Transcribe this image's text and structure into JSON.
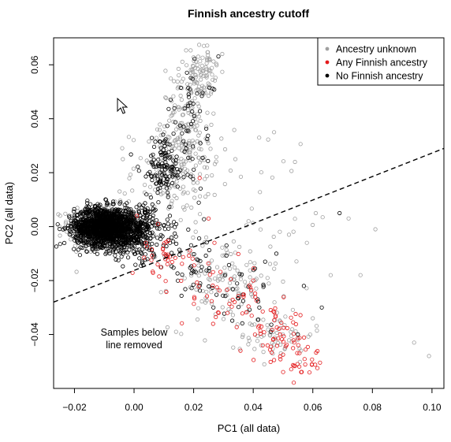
{
  "chart_data": {
    "type": "scatter",
    "title": "Finnish ancestry cutoff",
    "xlabel": "PC1 (all data)",
    "ylabel": "PC2 (all data)",
    "xlim": [
      -0.027,
      0.104
    ],
    "ylim": [
      -0.06,
      0.07
    ],
    "x_ticks": [
      -0.02,
      0.0,
      0.02,
      0.04,
      0.06,
      0.08,
      0.1
    ],
    "x_tick_labels": [
      "−0.02",
      "0.00",
      "0.02",
      "0.04",
      "0.06",
      "0.08",
      "0.10"
    ],
    "y_ticks": [
      -0.04,
      -0.02,
      0.0,
      0.02,
      0.04,
      0.06
    ],
    "y_tick_labels": [
      "−0.04",
      "−0.02",
      "0.00",
      "0.02",
      "0.04",
      "0.06"
    ],
    "grid": false,
    "legend_position": "top-right",
    "series": [
      {
        "name": "Ancestry unknown",
        "color": "#a0a0a0",
        "clusters": [
          {
            "cx": -0.01,
            "cy": 0.0,
            "sx": 0.006,
            "sy": 0.004,
            "n": 380
          },
          {
            "cx": 0.018,
            "cy": 0.04,
            "sx": 0.0045,
            "sy": 0.01,
            "n": 150
          },
          {
            "cx": 0.023,
            "cy": 0.058,
            "sx": 0.0022,
            "sy": 0.0045,
            "n": 70
          },
          {
            "cx": 0.014,
            "cy": 0.02,
            "sx": 0.0075,
            "sy": 0.008,
            "n": 140
          },
          {
            "cx": 0.03,
            "cy": -0.02,
            "sx": 0.009,
            "sy": 0.009,
            "n": 120
          },
          {
            "cx": 0.048,
            "cy": -0.04,
            "sx": 0.006,
            "sy": 0.005,
            "n": 60
          },
          {
            "cx": 0.045,
            "cy": 0.01,
            "sx": 0.014,
            "sy": 0.015,
            "n": 25
          }
        ],
        "points": [
          {
            "x": 0.094,
            "y": -0.043
          },
          {
            "x": 0.099,
            "y": -0.048
          },
          {
            "x": 0.076,
            "y": -0.018
          },
          {
            "x": 0.081,
            "y": -0.001
          },
          {
            "x": 0.072,
            "y": 0.003
          },
          {
            "x": 0.066,
            "y": -0.018
          },
          {
            "x": 0.058,
            "y": -0.006
          },
          {
            "x": 0.061,
            "y": 0.005
          },
          {
            "x": 0.047,
            "y": 0.035
          },
          {
            "x": 0.042,
            "y": 0.033
          },
          {
            "x": 0.054,
            "y": 0.024
          },
          {
            "x": 0.034,
            "y": 0.025
          },
          {
            "x": 0.06,
            "y": -0.034
          },
          {
            "x": 0.052,
            "y": -0.003
          }
        ]
      },
      {
        "name": "Any Finnish ancestry",
        "color": "#e41a1c",
        "clusters": [
          {
            "cx": 0.012,
            "cy": -0.013,
            "sx": 0.005,
            "sy": 0.004,
            "n": 35
          },
          {
            "cx": 0.03,
            "cy": -0.025,
            "sx": 0.007,
            "sy": 0.006,
            "n": 40
          },
          {
            "cx": 0.048,
            "cy": -0.041,
            "sx": 0.006,
            "sy": 0.005,
            "n": 60
          },
          {
            "cx": 0.057,
            "cy": -0.051,
            "sx": 0.003,
            "sy": 0.003,
            "n": 25
          }
        ],
        "points": [
          {
            "x": 0.001,
            "y": 0.004
          },
          {
            "x": 0.004,
            "y": -0.006
          },
          {
            "x": 0.008,
            "y": 0.001
          },
          {
            "x": 0.025,
            "y": 0.003
          },
          {
            "x": 0.027,
            "y": -0.006
          },
          {
            "x": 0.04,
            "y": -0.02
          },
          {
            "x": 0.022,
            "y": 0.018
          }
        ]
      },
      {
        "name": "No Finnish ancestry",
        "color": "#000000",
        "clusters": [
          {
            "cx": -0.01,
            "cy": 0.0,
            "sx": 0.005,
            "sy": 0.0035,
            "n": 1300
          },
          {
            "cx": 0.0,
            "cy": -0.002,
            "sx": 0.006,
            "sy": 0.005,
            "n": 380
          },
          {
            "cx": 0.01,
            "cy": 0.022,
            "sx": 0.004,
            "sy": 0.006,
            "n": 120
          },
          {
            "cx": 0.02,
            "cy": 0.04,
            "sx": 0.004,
            "sy": 0.012,
            "n": 50
          },
          {
            "cx": 0.02,
            "cy": -0.015,
            "sx": 0.005,
            "sy": 0.004,
            "n": 40
          },
          {
            "cx": 0.035,
            "cy": -0.027,
            "sx": 0.007,
            "sy": 0.006,
            "n": 30
          }
        ],
        "points": [
          {
            "x": 0.069,
            "y": 0.005
          },
          {
            "x": 0.063,
            "y": -0.03
          },
          {
            "x": 0.057,
            "y": -0.022
          },
          {
            "x": 0.031,
            "y": -0.007
          },
          {
            "x": 0.055,
            "y": -0.04
          },
          {
            "x": 0.044,
            "y": -0.013
          }
        ]
      }
    ],
    "cutoff_line": {
      "x1": -0.027,
      "y1": -0.028,
      "x2": 0.104,
      "y2": 0.029,
      "style": "dashed"
    },
    "annotation": {
      "lines": [
        "Samples below",
        "line removed"
      ],
      "x": 0.0,
      "y": -0.0425
    }
  }
}
